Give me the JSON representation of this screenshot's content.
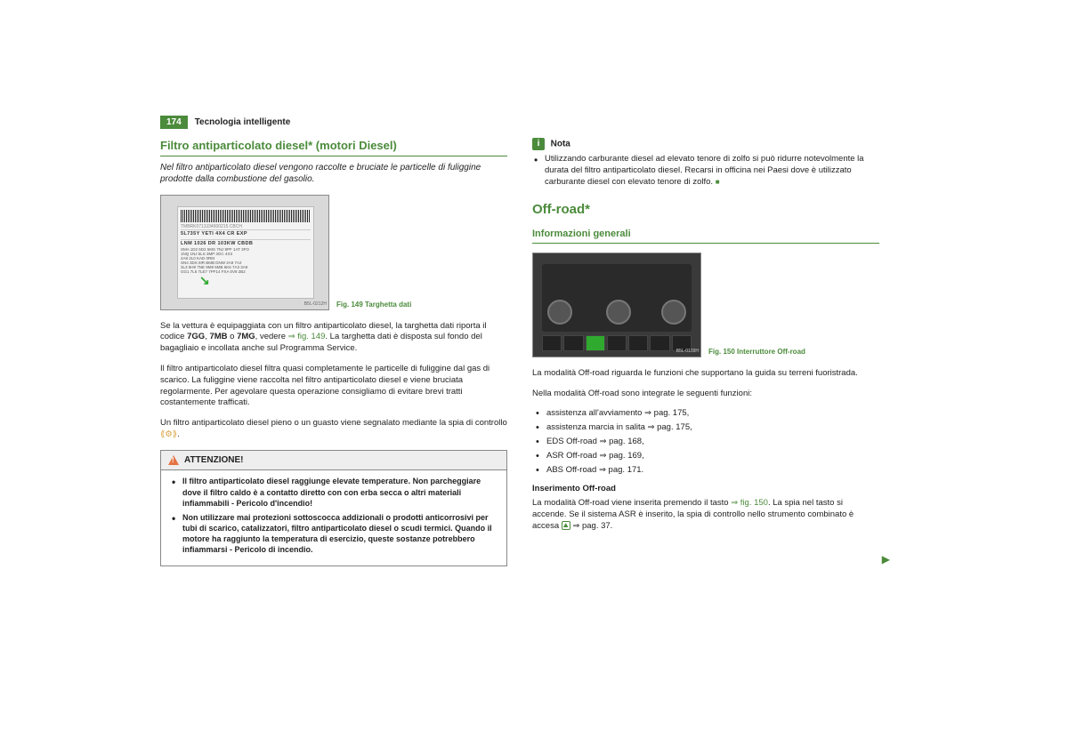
{
  "page": {
    "number": "174",
    "header": "Tecnologia intelligente"
  },
  "left": {
    "title": "Filtro antiparticolato diesel* (motori Diesel)",
    "subtitle": "Nel filtro antiparticolato diesel vengono raccolte e bruciate le particelle di fuliggine prodotte dalla combustione del gasolio.",
    "fig": {
      "label": "Fig. 149   Targhetta dati",
      "corner": "B5L-0212H",
      "line1": "5L735Y  YETI        4X4 CR     EXP",
      "line2": "LNM 1026          DR 103KW CBDB",
      "small": "SMA 1D2 5D2 5MS 7NJ 9PF 1AT 3FO\n1NQ 1NJ 5LS          3MP 3GC 4X3\n4A8 2L0                           KAD 0RM\nSN4 3DS 9IR BMB DNW 2A9 7A2\n3L3 5H9  7NE 9M9 5MB 6K6 7A3 3A9\nGG1 7L6  7LE7 7PF14 FXA 0V8 2B2"
    },
    "para1a": "Se la vettura è equipaggiata con un filtro antiparticolato diesel, la targhetta dati riporta il codice ",
    "para1b_bold": "7GG",
    "para1c": ", ",
    "para1d_bold": "7MB",
    "para1e": " o ",
    "para1f_bold": "7MG",
    "para1g": ", vedere ",
    "para1_link": "⇒ fig. 149",
    "para1h": ". La targhetta dati  è disposta sul fondo del bagagliaio e incollata anche sul Programma Service.",
    "para2": "Il filtro antiparticolato diesel filtra quasi completamente le particelle di fuliggine dal gas di scarico. La fuliggine viene raccolta nel filtro antiparticolato diesel e viene bruciata regolarmente. Per agevolare questa operazione consigliamo di evitare brevi tratti costantemente trafficati.",
    "para3a": "Un filtro antiparticolato diesel pieno o un guasto viene segnalato mediante la spia di controllo ",
    "para3b": ".",
    "warn": {
      "title": "ATTENZIONE!",
      "items": [
        "Il filtro antiparticolato diesel raggiunge elevate temperature. Non parcheggiare dove il filtro caldo è a contatto diretto con con erba secca o altri materiali infiammabili - Pericolo d'incendio!",
        "Non utilizzare mai protezioni sottoscocca addizionali o prodotti anticorrosivi per tubi di scarico, catalizzatori, filtro antiparticolato diesel o scudi termici. Quando il motore ha raggiunto la temperatura di esercizio, queste sostanze potrebbero infiammarsi - Pericolo di incendio."
      ]
    }
  },
  "right": {
    "note": {
      "title": "Nota",
      "text": "Utilizzando carburante diesel ad elevato tenore di zolfo si può ridurre notevolmente la durata del filtro antiparticolato diesel. Recarsi in officina nei Paesi dove è utilizzato carburante diesel con elevato tenore di zolfo."
    },
    "title": "Off-road*",
    "subsection": "Informazioni generali",
    "fig": {
      "label": "Fig. 150   Interruttore Off-road",
      "corner": "B5L-0139H"
    },
    "para1": "La modalità Off-road riguarda le funzioni che supportano la guida su terreni fuoristrada.",
    "para2": "Nella modalità Off-road sono integrate le seguenti funzioni:",
    "bullets": [
      "assistenza all'avviamento ⇒ pag. 175,",
      "assistenza marcia in salita ⇒ pag. 175,",
      "EDS Off-road ⇒ pag. 168,",
      "ASR Off-road ⇒ pag. 169,",
      "ABS Off-road ⇒ pag. 171."
    ],
    "subhead": "Inserimento Off-road",
    "para3a": "La modalità Off-road viene inserita premendo il tasto ",
    "para3_link": "⇒ fig. 150",
    "para3b": ". La spia nel tasto si accende. Se il sistema ASR è inserito, la spia di controllo nello strumento combinato è accesa ",
    "para3c": " ⇒ pag. 37."
  }
}
